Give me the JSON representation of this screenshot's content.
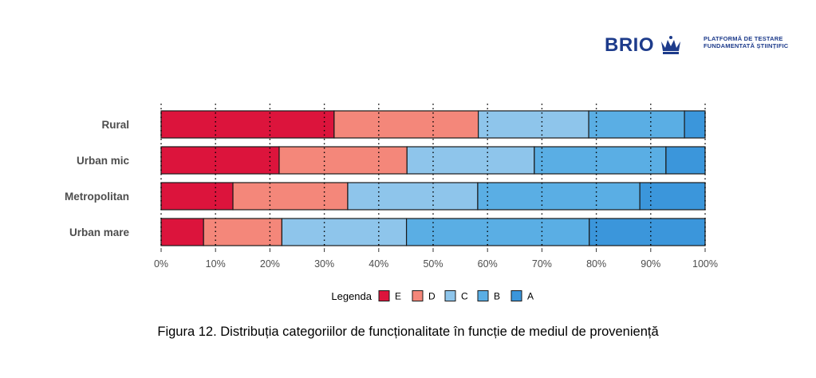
{
  "header": {
    "brand": "BRIO",
    "tagline_line1": "PLATFORMĂ DE TESTARE",
    "tagline_line2": "FUNDAMENTATĂ ȘTIINȚIFIC"
  },
  "caption": "Figura 12. Distribuția categoriilor de funcționalitate în funcție de mediul de proveniență",
  "chart_data": {
    "type": "bar",
    "orientation": "horizontal",
    "stacked": true,
    "title": "",
    "xlabel": "",
    "ylabel": "",
    "xlim": [
      0,
      100
    ],
    "x_ticks": [
      0,
      10,
      20,
      30,
      40,
      50,
      60,
      70,
      80,
      90,
      100
    ],
    "x_tick_labels": [
      "0%",
      "10%",
      "20%",
      "30%",
      "40%",
      "50%",
      "60%",
      "70%",
      "80%",
      "90%",
      "100%"
    ],
    "categories": [
      "Rural",
      "Urban mic",
      "Metropolitan",
      "Urban mare"
    ],
    "series": [
      {
        "name": "E",
        "color": "#dc143c",
        "values": [
          31.8,
          21.7,
          13.2,
          7.8
        ]
      },
      {
        "name": "D",
        "color": "#f4877a",
        "values": [
          26.5,
          23.5,
          21.1,
          14.4
        ]
      },
      {
        "name": "C",
        "color": "#8ec5eb",
        "values": [
          20.3,
          23.4,
          23.9,
          22.9
        ]
      },
      {
        "name": "B",
        "color": "#5aaee4",
        "values": [
          17.6,
          24.2,
          29.8,
          33.6
        ]
      },
      {
        "name": "A",
        "color": "#3b96db",
        "values": [
          3.8,
          7.2,
          12.0,
          21.3
        ]
      }
    ],
    "legend_title": "Legenda",
    "legend_position": "bottom",
    "grid": "dotted vertical"
  }
}
